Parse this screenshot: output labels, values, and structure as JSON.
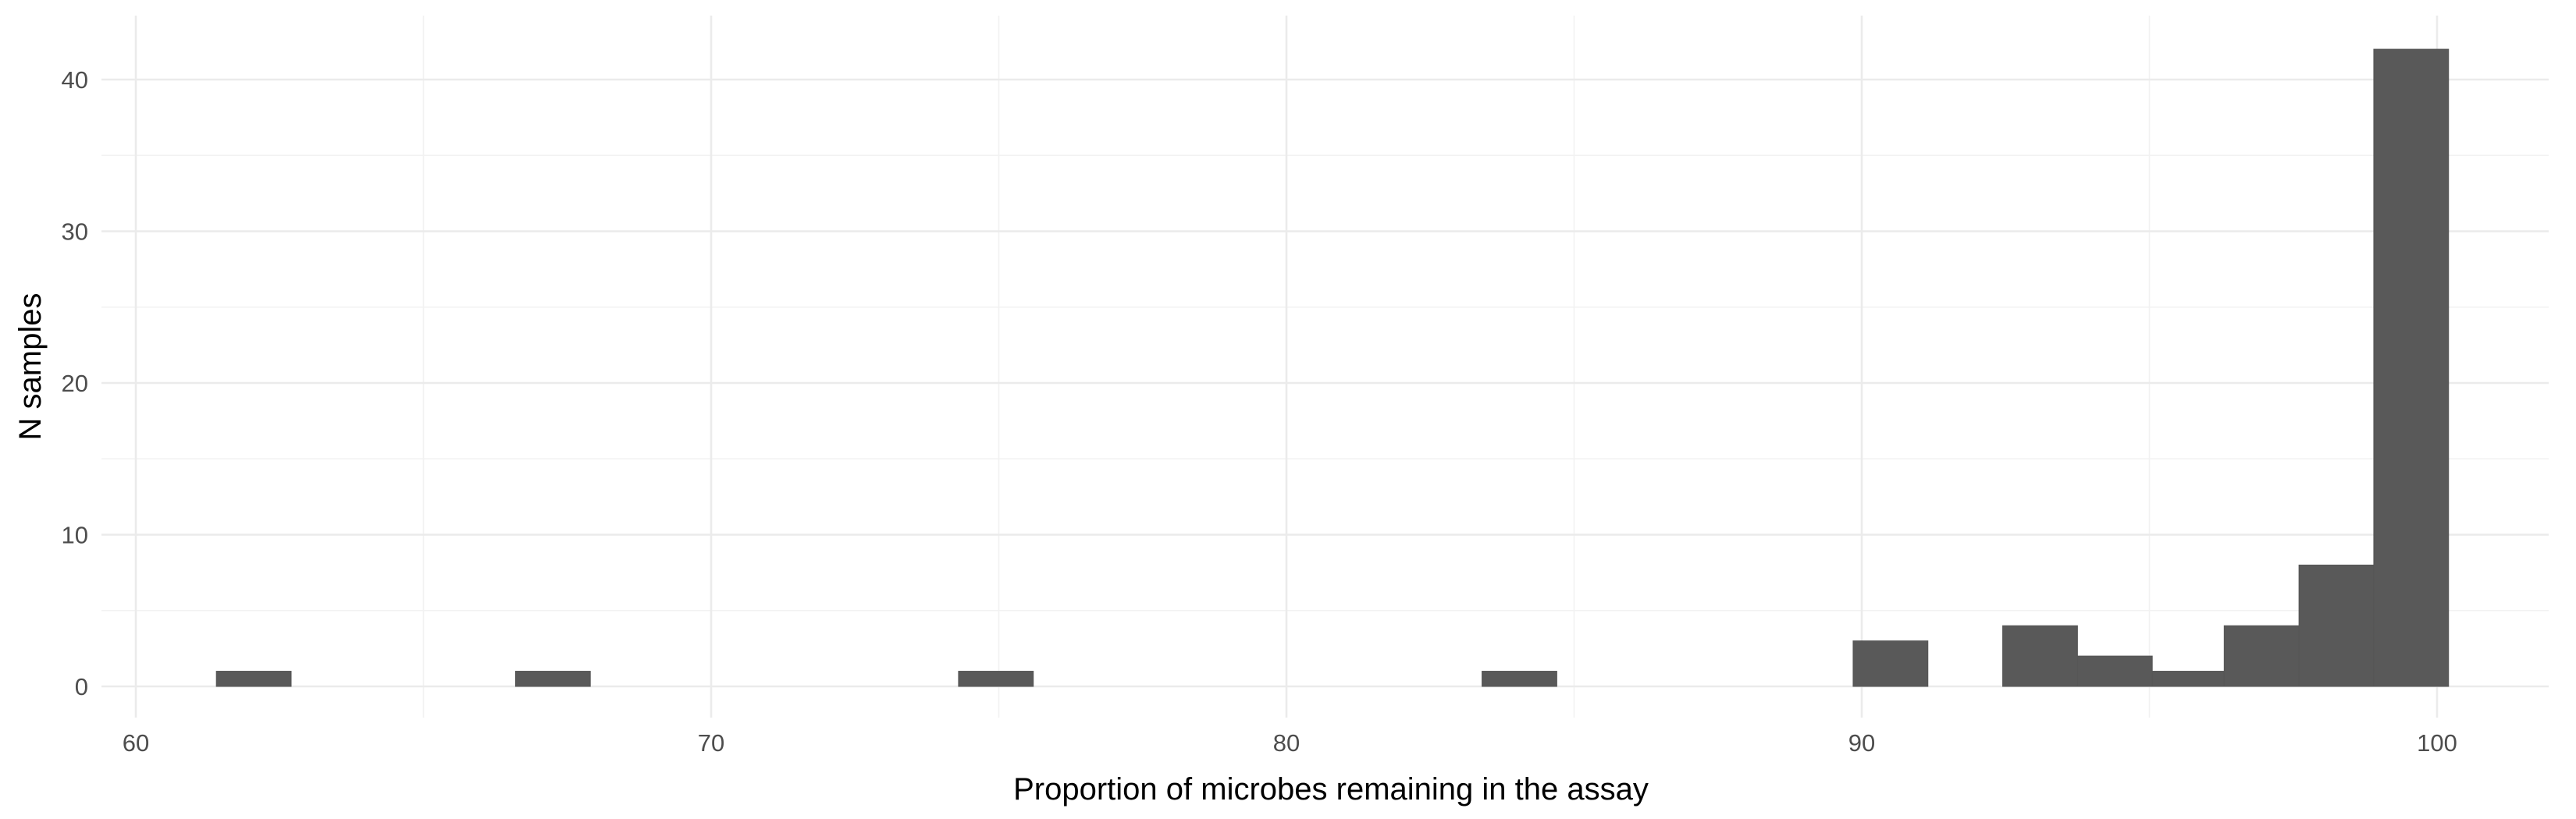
{
  "chart_data": {
    "type": "bar",
    "subtype": "histogram",
    "xlabel": "Proportion of microbes remaining in the assay",
    "ylabel": "N samples",
    "xlim": [
      59.3,
      102.2
    ],
    "ylim": [
      0,
      42
    ],
    "x_ticks": [
      60,
      70,
      80,
      90,
      100
    ],
    "y_ticks": [
      0,
      10,
      20,
      30,
      40
    ],
    "bin_width": 1.29,
    "bins": [
      {
        "x0": 61.4,
        "x1": 62.7,
        "count": 1
      },
      {
        "x0": 66.6,
        "x1": 67.9,
        "count": 1
      },
      {
        "x0": 74.3,
        "x1": 75.6,
        "count": 1
      },
      {
        "x0": 83.4,
        "x1": 84.7,
        "count": 1
      },
      {
        "x0": 89.85,
        "x1": 91.15,
        "count": 3
      },
      {
        "x0": 92.45,
        "x1": 93.75,
        "count": 4
      },
      {
        "x0": 93.75,
        "x1": 95.05,
        "count": 2
      },
      {
        "x0": 95.05,
        "x1": 96.3,
        "count": 1
      },
      {
        "x0": 96.3,
        "x1": 97.6,
        "count": 4
      },
      {
        "x0": 97.6,
        "x1": 98.9,
        "count": 8
      },
      {
        "x0": 98.9,
        "x1": 100.2,
        "count": 42
      }
    ],
    "grid": true,
    "bar_color": "#595959",
    "grid_color": "#ebebeb",
    "background": "#ffffff",
    "legend": "none"
  }
}
